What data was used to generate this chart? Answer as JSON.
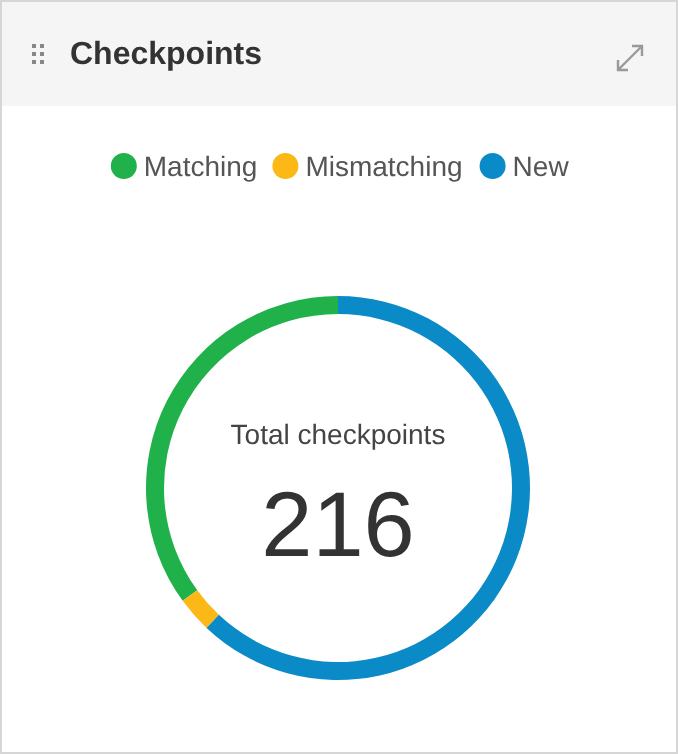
{
  "chart_data": {
    "type": "donut",
    "title": "Checkpoints",
    "categories": [
      "Matching",
      "Mismatching",
      "New"
    ],
    "values": [
      35,
      3,
      62
    ],
    "colors": [
      "#21b14b",
      "#fbb817",
      "#0a8ac6"
    ],
    "legend": "top",
    "annotations": [
      "Total checkpoints",
      "216"
    ]
  }
}
